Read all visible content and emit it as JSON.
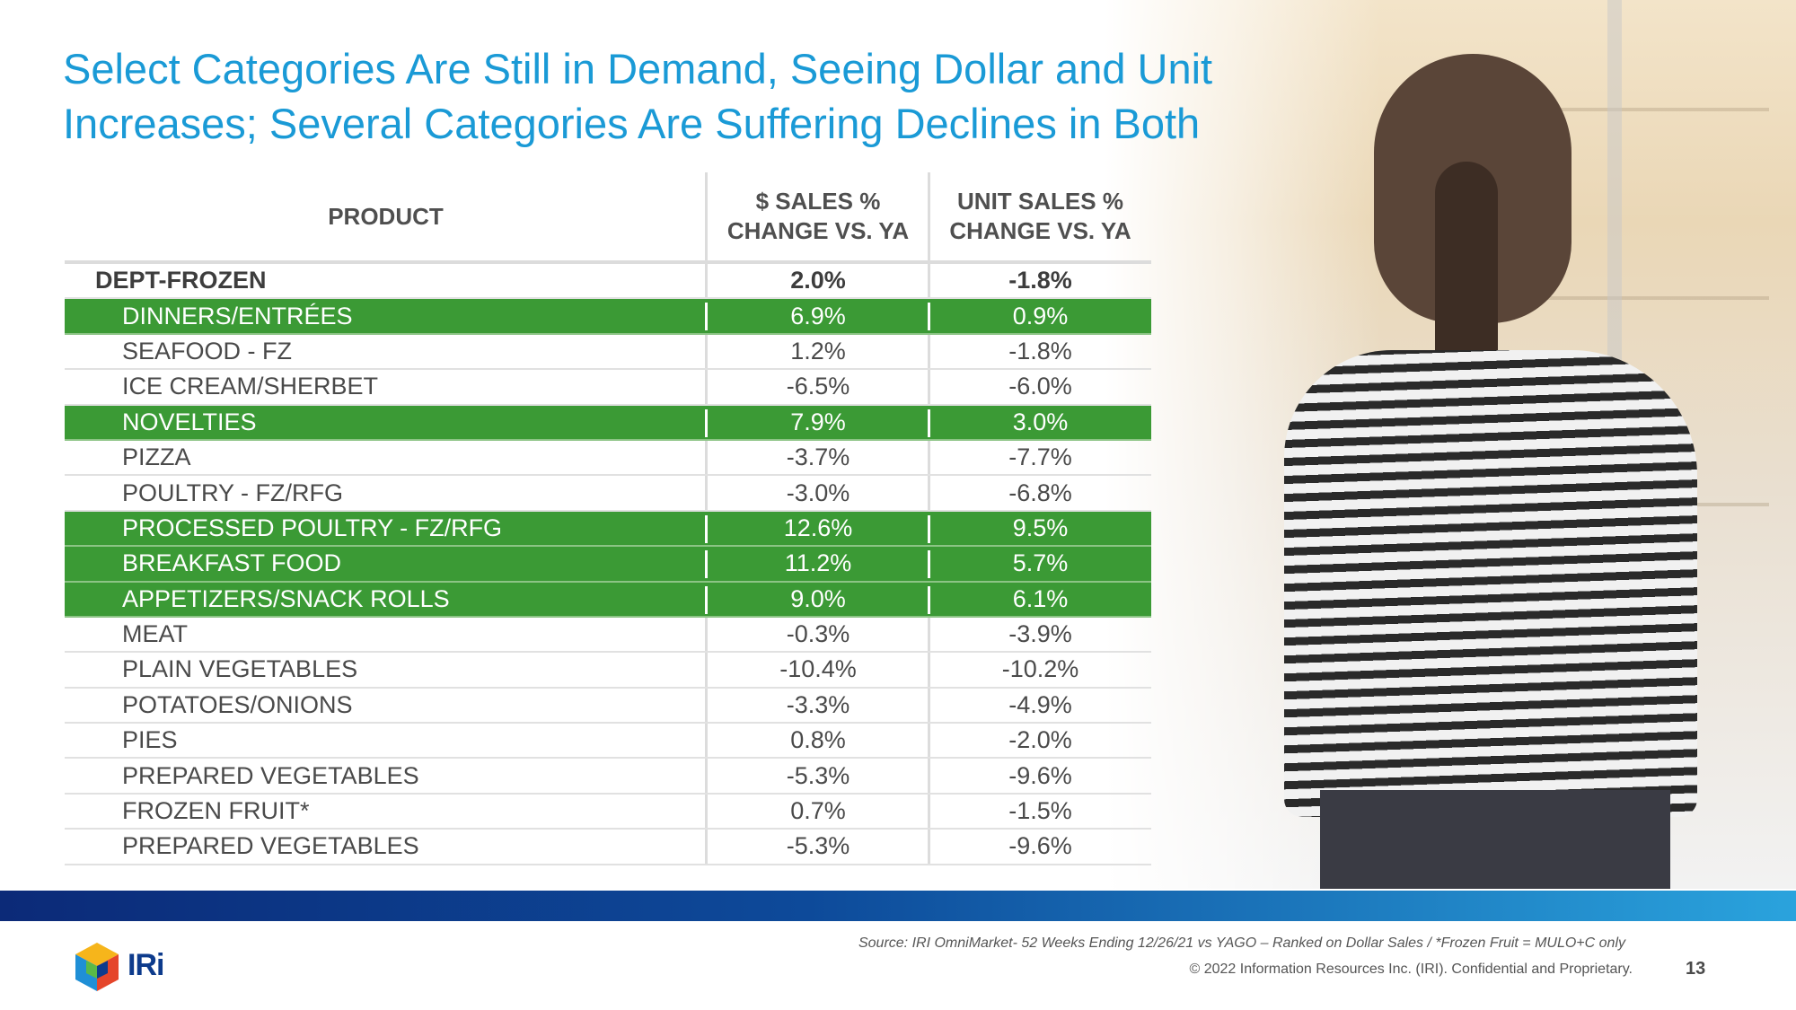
{
  "title": "Select Categories Are Still in Demand, Seeing Dollar and Unit Increases; Several Categories Are Suffering Declines in Both",
  "table": {
    "headers": {
      "product": "PRODUCT",
      "dollar_line1": "$ SALES %",
      "dollar_line2": "CHANGE VS. YA",
      "unit_line1": "UNIT SALES %",
      "unit_line2": "CHANGE VS. YA"
    },
    "rows": [
      {
        "product": "DEPT-FROZEN",
        "dollar": "2.0%",
        "unit": "-1.8%",
        "highlight": false,
        "bold": true
      },
      {
        "product": "DINNERS/ENTRÉES",
        "dollar": "6.9%",
        "unit": "0.9%",
        "highlight": true
      },
      {
        "product": "SEAFOOD - FZ",
        "dollar": "1.2%",
        "unit": "-1.8%",
        "highlight": false
      },
      {
        "product": "ICE CREAM/SHERBET",
        "dollar": "-6.5%",
        "unit": "-6.0%",
        "highlight": false
      },
      {
        "product": "NOVELTIES",
        "dollar": "7.9%",
        "unit": "3.0%",
        "highlight": true
      },
      {
        "product": "PIZZA",
        "dollar": "-3.7%",
        "unit": "-7.7%",
        "highlight": false
      },
      {
        "product": "POULTRY - FZ/RFG",
        "dollar": "-3.0%",
        "unit": "-6.8%",
        "highlight": false
      },
      {
        "product": "PROCESSED POULTRY - FZ/RFG",
        "dollar": "12.6%",
        "unit": "9.5%",
        "highlight": true
      },
      {
        "product": "BREAKFAST FOOD",
        "dollar": "11.2%",
        "unit": "5.7%",
        "highlight": true
      },
      {
        "product": "APPETIZERS/SNACK ROLLS",
        "dollar": "9.0%",
        "unit": "6.1%",
        "highlight": true
      },
      {
        "product": "MEAT",
        "dollar": "-0.3%",
        "unit": "-3.9%",
        "highlight": false
      },
      {
        "product": "PLAIN VEGETABLES",
        "dollar": "-10.4%",
        "unit": "-10.2%",
        "highlight": false
      },
      {
        "product": "POTATOES/ONIONS",
        "dollar": "-3.3%",
        "unit": "-4.9%",
        "highlight": false
      },
      {
        "product": "PIES",
        "dollar": "0.8%",
        "unit": "-2.0%",
        "highlight": false
      },
      {
        "product": "PREPARED VEGETABLES",
        "dollar": "-5.3%",
        "unit": "-9.6%",
        "highlight": false
      },
      {
        "product": "FROZEN FRUIT*",
        "dollar": "0.7%",
        "unit": "-1.5%",
        "highlight": false
      },
      {
        "product": "PREPARED VEGETABLES",
        "dollar": "-5.3%",
        "unit": "-9.6%",
        "highlight": false
      }
    ]
  },
  "footer": {
    "source": "Source: IRI OmniMarket- 52 Weeks Ending 12/26/21 vs YAGO – Ranked on Dollar Sales / *Frozen Fruit = MULO+C only",
    "copyright": "© 2022 Information Resources Inc. (IRI). Confidential and Proprietary.",
    "page_number": "13",
    "logo_text": "IRi"
  },
  "colors": {
    "title": "#1a9ad6",
    "highlight": "#3b9a35",
    "band_start": "#0c2a78",
    "band_end": "#2aa3dd"
  }
}
